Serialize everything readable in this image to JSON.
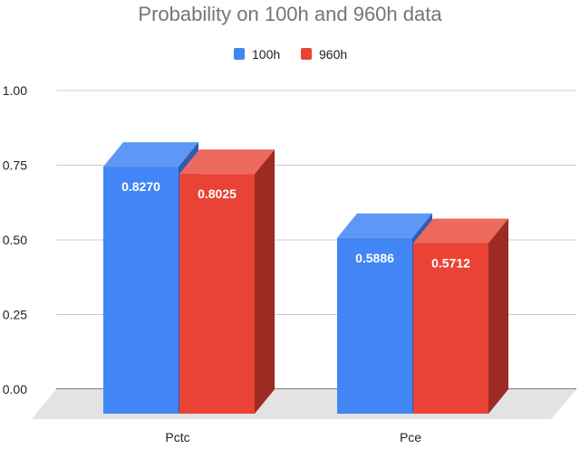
{
  "chart_data": {
    "type": "bar",
    "title": "Probability on 100h and 960h data",
    "xlabel": "",
    "ylabel": "",
    "categories": [
      "Pctc",
      "Pce"
    ],
    "series": [
      {
        "name": "100h",
        "values": [
          0.827,
          0.5886
        ],
        "labels": [
          "0.8270",
          "0.5886"
        ]
      },
      {
        "name": "960h",
        "values": [
          0.8025,
          0.5712
        ],
        "labels": [
          "0.8025",
          "0.5712"
        ]
      }
    ],
    "ylim": [
      0,
      1
    ],
    "yticks": [
      "1.00",
      "0.75",
      "0.50",
      "0.25",
      "0.00"
    ],
    "grid": true,
    "legend": "top",
    "style": "3d"
  },
  "colors": {
    "series": [
      "#4285f4",
      "#ea4335"
    ],
    "series_top": [
      "#5e97f6",
      "#ee6a5e"
    ],
    "series_side": [
      "#2f5cb2",
      "#9c2b24"
    ],
    "floor": "#e3e3e3",
    "grid": "#cccccc",
    "axis": "#333333"
  }
}
